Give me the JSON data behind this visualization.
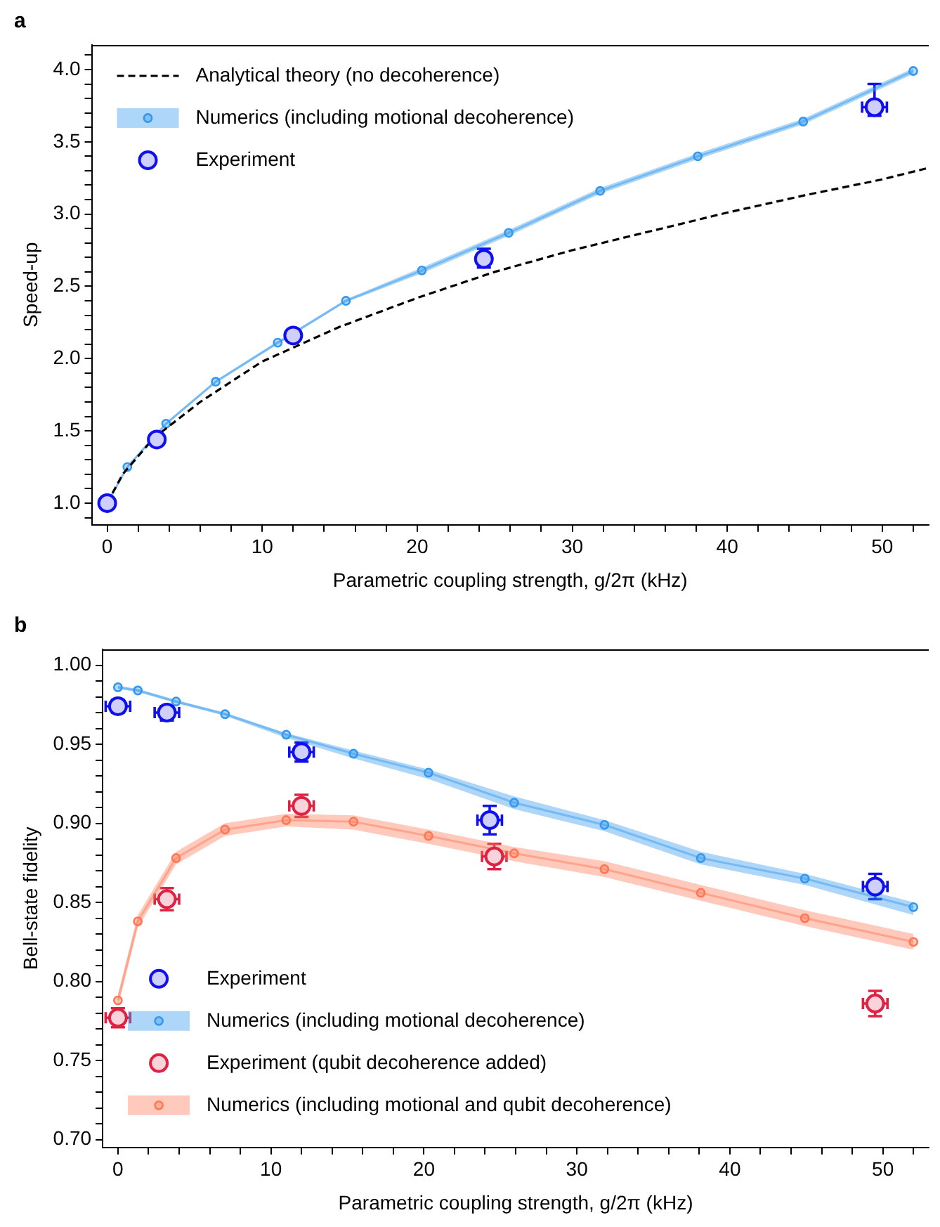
{
  "chart_data": [
    {
      "type": "line",
      "annotations": [
        "a"
      ],
      "xlabel": "Parametric coupling strength, g/2π (kHz)",
      "ylabel": "Speed-up",
      "xlim": [
        -1,
        53
      ],
      "ylim": [
        0.85,
        4.17
      ],
      "grid": false,
      "legend": "top left",
      "xticks": [
        0,
        {
          "value": 2,
          "label": null
        },
        {
          "value": 4,
          "label": null
        },
        {
          "value": 6,
          "label": null
        },
        {
          "value": 8,
          "label": null
        },
        10,
        {
          "value": 12,
          "label": null
        },
        {
          "value": 14,
          "label": null
        },
        {
          "value": 16,
          "label": null
        },
        {
          "value": 18,
          "label": null
        },
        20,
        {
          "value": 22,
          "label": null
        },
        {
          "value": 24,
          "label": null
        },
        {
          "value": 26,
          "label": null
        },
        {
          "value": 28,
          "label": null
        },
        30,
        {
          "value": 32,
          "label": null
        },
        {
          "value": 34,
          "label": null
        },
        {
          "value": 36,
          "label": null
        },
        {
          "value": 38,
          "label": null
        },
        40,
        {
          "value": 42,
          "label": null
        },
        {
          "value": 44,
          "label": null
        },
        {
          "value": 46,
          "label": null
        },
        {
          "value": 48,
          "label": null
        },
        50,
        {
          "value": 52,
          "label": null
        }
      ],
      "yticks": [
        {
          "value": 0.9,
          "label": null
        },
        {
          "value": 1,
          "label": "1.0"
        },
        {
          "value": 1.1,
          "label": null
        },
        {
          "value": 1.2,
          "label": null
        },
        {
          "value": 1.3,
          "label": null
        },
        {
          "value": 1.4,
          "label": null
        },
        {
          "value": 1.5,
          "label": "1.5"
        },
        {
          "value": 1.6,
          "label": null
        },
        {
          "value": 1.7,
          "label": null
        },
        {
          "value": 1.8,
          "label": null
        },
        {
          "value": 1.9,
          "label": null
        },
        {
          "value": 2,
          "label": "2.0"
        },
        {
          "value": 2.1,
          "label": null
        },
        {
          "value": 2.2,
          "label": null
        },
        {
          "value": 2.3,
          "label": null
        },
        {
          "value": 2.4,
          "label": null
        },
        {
          "value": 2.5,
          "label": "2.5"
        },
        {
          "value": 2.6,
          "label": null
        },
        {
          "value": 2.7,
          "label": null
        },
        {
          "value": 2.8,
          "label": null
        },
        {
          "value": 2.9,
          "label": null
        },
        {
          "value": 3,
          "label": "3.0"
        },
        {
          "value": 3.1,
          "label": null
        },
        {
          "value": 3.2,
          "label": null
        },
        {
          "value": 3.3,
          "label": null
        },
        {
          "value": 3.4,
          "label": null
        },
        {
          "value": 3.5,
          "label": "3.5"
        },
        {
          "value": 3.6,
          "label": null
        },
        {
          "value": 3.7,
          "label": null
        },
        {
          "value": 3.8,
          "label": null
        },
        {
          "value": 3.9,
          "label": null
        },
        {
          "value": 4,
          "label": "4.0"
        },
        {
          "value": 4.1,
          "label": null
        }
      ],
      "series": [
        {
          "name": "Analytical theory (no decoherence)",
          "type": "line",
          "color": "#000000",
          "line_style": "dashed",
          "marker": "none",
          "x": [
            0,
            1,
            3,
            6,
            10,
            15,
            20,
            25,
            30,
            35,
            40,
            45,
            50,
            53
          ],
          "values": [
            1.0,
            1.2,
            1.45,
            1.7,
            1.98,
            2.22,
            2.42,
            2.6,
            2.75,
            2.88,
            3.01,
            3.13,
            3.24,
            3.32
          ]
        },
        {
          "name": "Numerics (including motional decoherence)",
          "type": "line",
          "color": "#3399ee",
          "line_style": "solid",
          "marker": "circle",
          "x": [
            0,
            1.3,
            3.8,
            7.0,
            11.0,
            15.4,
            20.3,
            25.9,
            31.8,
            38.1,
            44.9,
            52.0
          ],
          "values": [
            1.0,
            1.25,
            1.55,
            1.84,
            2.11,
            2.4,
            2.61,
            2.87,
            3.16,
            3.4,
            3.64,
            3.99
          ],
          "lower": [
            0.99,
            1.24,
            1.54,
            1.83,
            2.1,
            2.39,
            2.59,
            2.85,
            3.14,
            3.38,
            3.62,
            3.97
          ],
          "upper": [
            1.01,
            1.26,
            1.56,
            1.85,
            2.12,
            2.41,
            2.63,
            2.89,
            3.18,
            3.42,
            3.66,
            4.01
          ]
        },
        {
          "name": "Experiment",
          "type": "scatter",
          "color": "#1010ee",
          "marker": "circle",
          "x": [
            0,
            3.2,
            12.0,
            24.3,
            49.5
          ],
          "values": [
            1.0,
            1.44,
            2.16,
            2.69,
            3.74
          ],
          "errors": [
            null,
            null,
            null,
            [
              2.63,
              2.76
            ],
            [
              3.68,
              3.9
            ]
          ],
          "xerrors": [
            null,
            null,
            null,
            null,
            0.8
          ]
        }
      ]
    },
    {
      "type": "line",
      "annotations": [
        "b"
      ],
      "xlabel": "Parametric coupling strength, g/2π (kHz)",
      "ylabel": "Bell-state fidelity",
      "xlim": [
        -1,
        53
      ],
      "ylim": [
        0.695,
        1.01
      ],
      "grid": false,
      "legend": "bottom left",
      "xticks": [
        0,
        {
          "value": 2,
          "label": null
        },
        {
          "value": 4,
          "label": null
        },
        {
          "value": 6,
          "label": null
        },
        {
          "value": 8,
          "label": null
        },
        10,
        {
          "value": 12,
          "label": null
        },
        {
          "value": 14,
          "label": null
        },
        {
          "value": 16,
          "label": null
        },
        {
          "value": 18,
          "label": null
        },
        20,
        {
          "value": 22,
          "label": null
        },
        {
          "value": 24,
          "label": null
        },
        {
          "value": 26,
          "label": null
        },
        {
          "value": 28,
          "label": null
        },
        30,
        {
          "value": 32,
          "label": null
        },
        {
          "value": 34,
          "label": null
        },
        {
          "value": 36,
          "label": null
        },
        {
          "value": 38,
          "label": null
        },
        40,
        {
          "value": 42,
          "label": null
        },
        {
          "value": 44,
          "label": null
        },
        {
          "value": 46,
          "label": null
        },
        {
          "value": 48,
          "label": null
        },
        50,
        {
          "value": 52,
          "label": null
        }
      ],
      "yticks": [
        {
          "value": 0.7,
          "label": "0.70"
        },
        {
          "value": 0.71,
          "label": null
        },
        {
          "value": 0.72,
          "label": null
        },
        {
          "value": 0.73,
          "label": null
        },
        {
          "value": 0.74,
          "label": null
        },
        {
          "value": 0.75,
          "label": "0.75"
        },
        {
          "value": 0.76,
          "label": null
        },
        {
          "value": 0.77,
          "label": null
        },
        {
          "value": 0.78,
          "label": null
        },
        {
          "value": 0.79,
          "label": null
        },
        {
          "value": 0.8,
          "label": "0.80"
        },
        {
          "value": 0.81,
          "label": null
        },
        {
          "value": 0.82,
          "label": null
        },
        {
          "value": 0.83,
          "label": null
        },
        {
          "value": 0.84,
          "label": null
        },
        {
          "value": 0.85,
          "label": "0.85"
        },
        {
          "value": 0.86,
          "label": null
        },
        {
          "value": 0.87,
          "label": null
        },
        {
          "value": 0.88,
          "label": null
        },
        {
          "value": 0.89,
          "label": null
        },
        {
          "value": 0.9,
          "label": "0.90"
        },
        {
          "value": 0.91,
          "label": null
        },
        {
          "value": 0.92,
          "label": null
        },
        {
          "value": 0.93,
          "label": null
        },
        {
          "value": 0.94,
          "label": null
        },
        {
          "value": 0.95,
          "label": "0.95"
        },
        {
          "value": 0.96,
          "label": null
        },
        {
          "value": 0.97,
          "label": null
        },
        {
          "value": 0.98,
          "label": null
        },
        {
          "value": 0.99,
          "label": null
        },
        {
          "value": 1,
          "label": "1.00"
        }
      ],
      "series": [
        {
          "name": "Experiment",
          "type": "scatter",
          "color": "#1010ee",
          "x": [
            0,
            3.2,
            12.0,
            24.3,
            49.5
          ],
          "values": [
            0.974,
            0.97,
            0.945,
            0.902,
            0.86
          ],
          "errors": [
            0.004,
            [
              0.965,
              0.974
            ],
            0.006,
            0.009,
            0.008
          ],
          "xerrors": [
            0.8,
            0.8,
            0.8,
            0.8,
            0.8
          ]
        },
        {
          "name": "Numerics (including motional decoherence)",
          "type": "line",
          "color": "#3399ee",
          "line_style": "solid",
          "marker": "circle",
          "x": [
            0,
            1.3,
            3.8,
            7.0,
            11.0,
            15.4,
            20.3,
            25.9,
            31.8,
            38.1,
            44.9,
            52.0
          ],
          "values": [
            0.986,
            0.984,
            0.977,
            0.969,
            0.956,
            0.944,
            0.932,
            0.913,
            0.899,
            0.878,
            0.865,
            0.847
          ],
          "lower": [
            0.985,
            0.983,
            0.976,
            0.968,
            0.954,
            0.941,
            0.928,
            0.909,
            0.895,
            0.874,
            0.861,
            0.842
          ],
          "upper": [
            0.987,
            0.985,
            0.978,
            0.97,
            0.957,
            0.946,
            0.934,
            0.917,
            0.902,
            0.882,
            0.868,
            0.85
          ]
        },
        {
          "name": "Experiment (qubit decoherence added)",
          "type": "scatter",
          "color": "#dd2244",
          "x": [
            0,
            3.2,
            12.0,
            24.6,
            49.5
          ],
          "values": [
            0.777,
            0.852,
            0.911,
            0.879,
            0.786
          ],
          "errors": [
            0.006,
            0.007,
            0.007,
            0.008,
            0.008
          ],
          "xerrors": [
            0.8,
            0.8,
            0.8,
            0.8,
            0.8
          ]
        },
        {
          "name": "Numerics (including motional and qubit decoherence)",
          "type": "line",
          "color": "#ff7755",
          "line_style": "solid",
          "marker": "circle",
          "x": [
            0,
            1.3,
            3.8,
            7.0,
            11.0,
            15.4,
            20.3,
            25.9,
            31.8,
            38.1,
            44.9,
            52.0
          ],
          "values": [
            0.788,
            0.838,
            0.878,
            0.896,
            0.902,
            0.901,
            0.892,
            0.881,
            0.871,
            0.856,
            0.84,
            0.825
          ],
          "lower": [
            0.784,
            0.834,
            0.874,
            0.892,
            0.898,
            0.896,
            0.887,
            0.876,
            0.866,
            0.851,
            0.835,
            0.82
          ],
          "upper": [
            0.792,
            0.842,
            0.882,
            0.9,
            0.906,
            0.905,
            0.896,
            0.885,
            0.876,
            0.861,
            0.845,
            0.83
          ]
        }
      ]
    }
  ]
}
